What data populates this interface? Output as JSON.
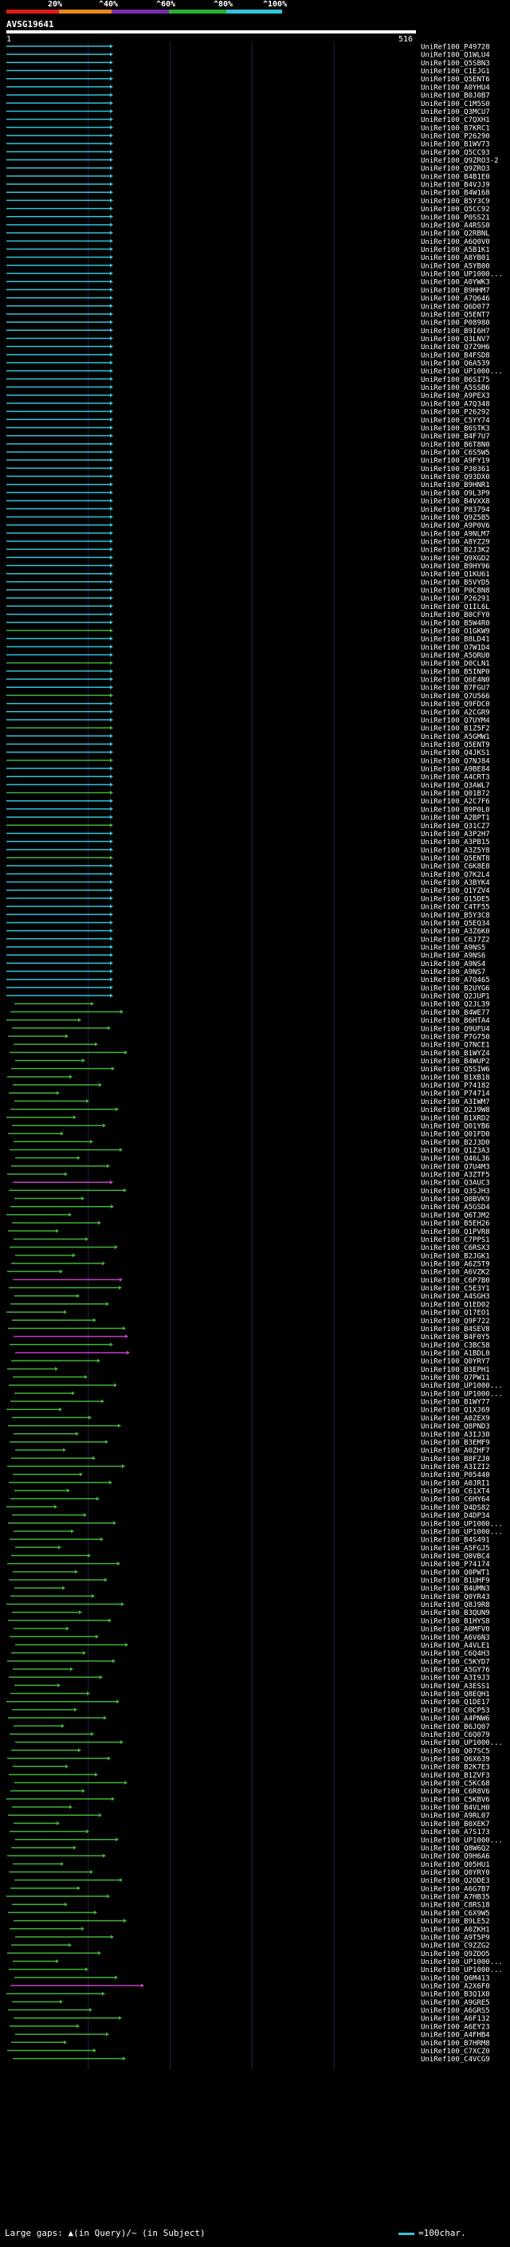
{
  "scale": {
    "labels": [
      "20%",
      "^40%",
      "^60%",
      "^80%",
      "^100%"
    ],
    "colors": [
      "#e01b1b",
      "#e88a17",
      "#7a2da8",
      "#2bb12b",
      "#33c4d8"
    ]
  },
  "query": {
    "name": "AVSG19641",
    "start": "1",
    "end": "516"
  },
  "chart_data": {
    "type": "alignment-overview",
    "query_length": 516,
    "identity_colors": {
      "cyan": "#33c4d8",
      "green": "#42b33a",
      "magenta": "#c040c0",
      "yellow": "#f0e000"
    },
    "subject_ids": [
      "UniRef100_P49728",
      "UniRef100_Q1WLU4",
      "UniRef100_Q5SBN3",
      "UniRef100_C1EJG1",
      "UniRef100_Q5ENT6",
      "UniRef100_A0YHU4",
      "UniRef100_B0J0B7",
      "UniRef100_C1M5S0",
      "UniRef100_Q3MCU7",
      "UniRef100_C7QXH1",
      "UniRef100_B7KRC1",
      "UniRef100_P26290",
      "UniRef100_B1WV73",
      "UniRef100_Q5CC93",
      "UniRef100_Q9ZRO3-2",
      "UniRef100_Q9ZRO3",
      "UniRef100_B4B1E0",
      "UniRef100_B4VJJ9",
      "UniRef100_B4W168",
      "UniRef100_B5Y3C9",
      "UniRef100_Q5CC92",
      "UniRef100_P0SS21",
      "UniRef100_A4RSS0",
      "UniRef100_Q2RBNL",
      "UniRef100_A6Q0V0",
      "UniRef100_A5B1K1",
      "UniRef100_A8YB01",
      "UniRef100_A5YB00",
      "UniRef100_UP1000...",
      "UniRef100_A0YWK3",
      "UniRef100_B9HHM7",
      "UniRef100_A7Q646",
      "UniRef100_Q6D077",
      "UniRef100_Q5ENT7",
      "UniRef100_P08980",
      "UniRef100_B9I6H7",
      "UniRef100_Q3LNV7",
      "UniRef100_Q7Z9H6",
      "UniRef100_B4FSD8",
      "UniRef100_Q6A539",
      "UniRef100_UP1000...",
      "UniRef100_B6SI75",
      "UniRef100_A5SSB6",
      "UniRef100_A9PEX3",
      "UniRef100_A7Q348",
      "UniRef100_P26292",
      "UniRef100_C5YY74",
      "UniRef100_B6STK3",
      "UniRef100_B4F7U7",
      "UniRef100_B6T8N0",
      "UniRef100_C6S5W5",
      "UniRef100_A9FY19",
      "UniRef100_P30361",
      "UniRef100_Q93DX0",
      "UniRef100_B9HNR1",
      "UniRef100_O9L3P9",
      "UniRef100_B4VXX8",
      "UniRef100_P83794",
      "UniRef100_Q9Z5B5",
      "UniRef100_A9P0V6",
      "UniRef100_A9NLM7",
      "UniRef100_A8YZ29",
      "UniRef100_B2J3K2",
      "UniRef100_Q9XGD2",
      "UniRef100_B9HY96",
      "UniRef100_Q1KU61",
      "UniRef100_B5VYD5",
      "UniRef100_P0C8N8",
      "UniRef100_P26291",
      "UniRef100_Q1IL6L",
      "UniRef100_B0CFY0",
      "UniRef100_B5W4R0",
      "UniRef100_O1GKW9",
      "UniRef100_B8LD41",
      "UniRef100_O7W1D4",
      "UniRef100_A5QRU0",
      "UniRef100_D0CLN1",
      "UniRef100_B5INP0",
      "UniRef100_Q6E4N0",
      "UniRef100_B7FGU7",
      "UniRef100_Q7U566",
      "UniRef100_Q9FDC0",
      "UniRef100_A2CGR9",
      "UniRef100_Q7UYM4",
      "UniRef100_B1Z5F2",
      "UniRef100_A5GMW1",
      "UniRef100_Q5ENT9",
      "UniRef100_Q4JKS1",
      "UniRef100_Q7NJ84",
      "UniRef100_A9BE84",
      "UniRef100_A4CRT3",
      "UniRef100_Q3AWL7",
      "UniRef100_Q01B72",
      "UniRef100_A2C7F6",
      "UniRef100_B9P0L0",
      "UniRef100_A2BPT1",
      "UniRef100_Q31CZ7",
      "UniRef100_A3P2H7",
      "UniRef100_A3PB15",
      "UniRef100_A3Z5Y8",
      "UniRef100_Q5ENT8",
      "UniRef100_C6K8E8",
      "UniRef100_Q7K2L4",
      "UniRef100_A3BYK4",
      "UniRef100_Q1YZV4",
      "UniRef100_Q15DE5",
      "UniRef100_C4TF55",
      "UniRef100_B5Y3C8",
      "UniRef100_Q5EQ34",
      "UniRef100_A3Z6K0",
      "UniRef100_C6J7Z2",
      "UniRef100_A9NS5",
      "UniRef100_A9NS6",
      "UniRef100_A9NS4",
      "UniRef100_A9NS7",
      "UniRef100_A7Q465",
      "UniRef100_B2UYG6",
      "UniRef100_Q2JUP1",
      "UniRef100_Q2JL39",
      "UniRef100_B4WE77",
      "UniRef100_B6HTA4",
      "UniRef100_Q9UFU4",
      "UniRef100_P7G750",
      "UniRef100_Q7NCE1",
      "UniRef100_B1WYZ4",
      "UniRef100_B4WUP2",
      "UniRef100_Q5SIW6",
      "UniRef100_B1XB18",
      "UniRef100_P74182",
      "UniRef100_P74714",
      "UniRef100_A3IWM7",
      "UniRef100_Q2J9W8",
      "UniRef100_B1XRD2",
      "UniRef100_Q01YB6",
      "UniRef100_Q01FD0",
      "UniRef100_B2J3D0",
      "UniRef100_Q1Z3A3",
      "UniRef100_Q46L36",
      "UniRef100_Q7U4M3",
      "UniRef100_A3ZTF5",
      "UniRef100_Q3AUC3",
      "UniRef100_Q3SJH3",
      "UniRef100_Q0BVK9",
      "UniRef100_A5GSD4",
      "UniRef100_Q6TJM2",
      "UniRef100_B5EH26",
      "UniRef100_Q1PVR8",
      "UniRef100_C7PPS1",
      "UniRef100_C6RSX3",
      "UniRef100_B2JGK1",
      "UniRef100_A6Z5T9",
      "UniRef100_A6VZK2",
      "UniRef100_C6P7B0",
      "UniRef100_C5E3Y1",
      "UniRef100_A4SGH3",
      "UniRef100_Q1ED02",
      "UniRef100_Q17EO1",
      "UniRef100_Q9F722",
      "UniRef100_B4SEV8",
      "UniRef100_B4F0Y5",
      "UniRef100_C3BC58",
      "UniRef100_A1BDL0",
      "UniRef100_Q0YRY7",
      "UniRef100_B3EPH1",
      "UniRef100_Q7PW11",
      "UniRef100_UP1000...",
      "UniRef100_UP1000...",
      "UniRef100_B1WY77",
      "UniRef100_Q1XJ69",
      "UniRef100_A0ZEX9",
      "UniRef100_Q8PND3",
      "UniRef100_A3IJ30",
      "UniRef100_B3EMF9",
      "UniRef100_A0ZHF7",
      "UniRef100_B8FZJ0",
      "UniRef100_A3IZI2",
      "UniRef100_P05440",
      "UniRef100_A0JRI1",
      "UniRef100_C61XT4",
      "UniRef100_C6HY64",
      "UniRef100_D4DS82",
      "UniRef100_D4DP34",
      "UniRef100_UP1000...",
      "UniRef100_UP1000...",
      "UniRef100_B4S491",
      "UniRef100_A5FGJ5",
      "UniRef100_Q0VBC4",
      "UniRef100_P74174",
      "UniRef100_Q0PWT1",
      "UniRef100_B1UHF9",
      "UniRef100_B4UMN3",
      "UniRef100_Q0YR43",
      "UniRef100_Q8J9R8",
      "UniRef100_B3QUN9",
      "UniRef100_B1HYS8",
      "UniRef100_A0MFV0",
      "UniRef100_A6V6N3",
      "UniRef100_A4VLE1",
      "UniRef100_C6Q4H3",
      "UniRef100_C5KYD7",
      "UniRef100_A5GY76",
      "UniRef100_A3I9J3",
      "UniRef100_A3ESS1",
      "UniRef100_Q8EQH1",
      "UniRef100_Q1DE17",
      "UniRef100_C0CP53",
      "UniRef100_A4PNW6",
      "UniRef100_B6JQ07",
      "UniRef100_C6Q079",
      "UniRef100_UP1000...",
      "UniRef100_Q07SC5",
      "UniRef100_Q6X639",
      "UniRef100_B2K7E3",
      "UniRef100_B1ZVF3",
      "UniRef100_C5KC68",
      "UniRef100_C6R8V6",
      "UniRef100_C5KBV6",
      "UniRef100_B4VLH0",
      "UniRef100_A9RL07",
      "UniRef100_B0XEK7",
      "UniRef100_A7S173",
      "UniRef100_UP1000...",
      "UniRef100_Q8W6Q2",
      "UniRef100_Q9H6A6",
      "UniRef100_Q05HU1",
      "UniRef100_Q0YRY0",
      "UniRef100_Q2ODE3",
      "UniRef100_A6G7B7",
      "UniRef100_A7HB35",
      "UniRef100_C8RS18",
      "UniRef100_C6X9W5",
      "UniRef100_B9LE52",
      "UniRef100_A0ZKH1",
      "UniRef100_A9T5P9",
      "UniRef100_C9ZZG2",
      "UniRef100_Q9ZDO5",
      "UniRef100_UP1000...",
      "UniRef100_UP1000...",
      "UniRef100_Q6M413",
      "UniRef100_A2X6F0",
      "UniRef100_B3Q1X0",
      "UniRef100_A9GRE5",
      "UniRef100_A6GRS5",
      "UniRef100_A6F132",
      "UniRef100_A6EY23",
      "UniRef100_A4FHB4",
      "UniRef100_B7HRM8",
      "UniRef100_C7XCZ0",
      "UniRef100_C4VCG9"
    ],
    "x_range": [
      1,
      516
    ]
  },
  "legend": {
    "gap_text": "Large gaps: ▲(in Query)/~ (in Subject)",
    "char_text": "=100char."
  }
}
